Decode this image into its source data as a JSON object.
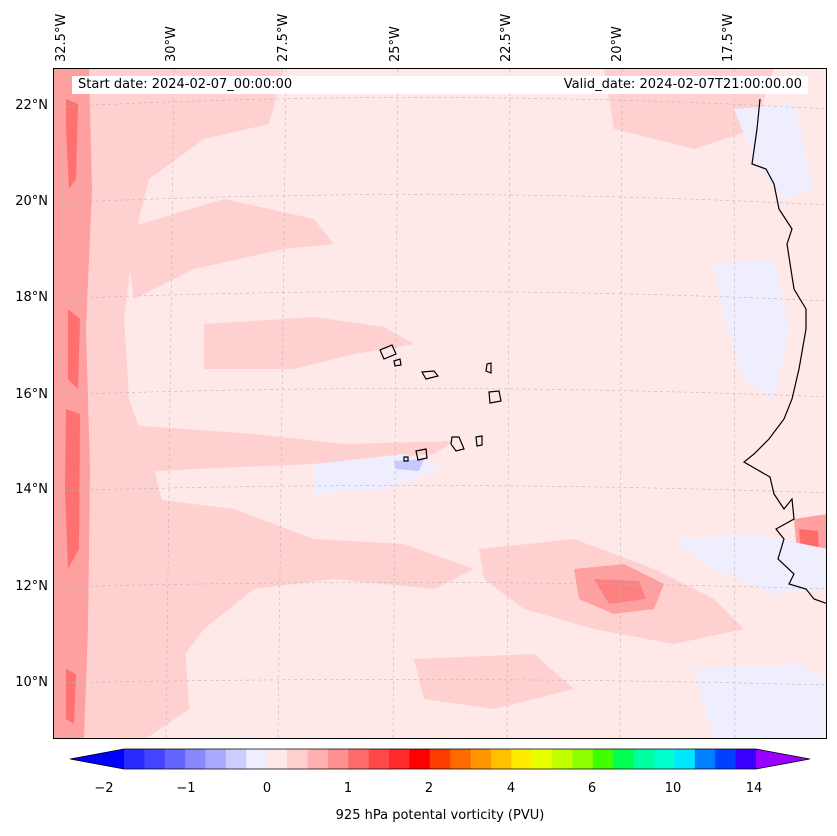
{
  "map": {
    "start_date": "Start date: 2024-02-07_00:00:00",
    "valid_date": "Valid_date: 2024-02-07T21:00:00.00",
    "lat_labels": [
      "22°N",
      "20°N",
      "18°N",
      "16°N",
      "14°N",
      "12°N",
      "10°N"
    ],
    "lon_labels": [
      "32.5°W",
      "30°W",
      "27.5°W",
      "25°W",
      "22.5°W",
      "20°W",
      "17.5°W"
    ],
    "field": "925 hPa potental vorticity (PVU)",
    "colors": {
      "background_field": "#ffe8e8",
      "positive_low": "#ffd0d0",
      "positive_mid": "#ffa0a0",
      "positive_high": "#ff7070",
      "negative_low": "#eeeeff",
      "coastline": "#000000",
      "gridline": "#b8b8b8"
    }
  },
  "colorbar": {
    "label": "925 hPa potental vorticity (PVU)",
    "ticks": [
      "−2",
      "−1",
      "0",
      "1",
      "2",
      "4",
      "6",
      "10",
      "14"
    ],
    "colors": [
      "#0000ff",
      "#2a2aff",
      "#4444ff",
      "#6464ff",
      "#8888ff",
      "#aaaaff",
      "#ccccff",
      "#eeeeff",
      "#ffe8e8",
      "#ffd0d0",
      "#ffb0b0",
      "#ff9090",
      "#ff6a6a",
      "#ff4848",
      "#ff2a2a",
      "#ff0000",
      "#ff3c00",
      "#ff6a00",
      "#ff9600",
      "#ffc000",
      "#ffea00",
      "#e8ff00",
      "#c0ff00",
      "#8cff00",
      "#40ff00",
      "#00ff50",
      "#00ffa0",
      "#00ffcc",
      "#00e8ff",
      "#0080ff",
      "#0040ff",
      "#3a00ff",
      "#9a00ff"
    ]
  }
}
